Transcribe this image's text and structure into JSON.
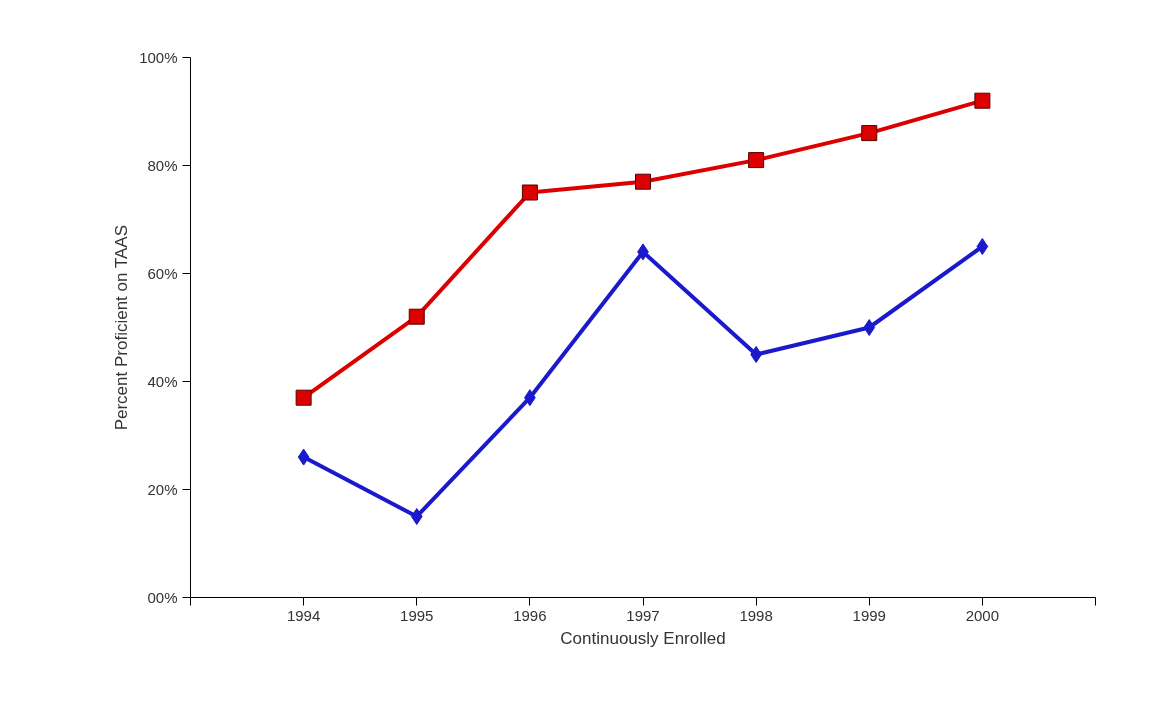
{
  "chart_data": {
    "type": "line",
    "xlabel": "Continuously Enrolled",
    "ylabel": "Percent Proficient on TAAS",
    "x": [
      1994,
      1995,
      1996,
      1997,
      1998,
      1999,
      2000
    ],
    "series": [
      {
        "color": "#dd0000",
        "marker": "square",
        "values": [
          37,
          52,
          75,
          77,
          81,
          86,
          92
        ]
      },
      {
        "color": "#1a1acc",
        "marker": "diamond",
        "values": [
          26,
          15,
          37,
          64,
          45,
          50,
          65
        ]
      }
    ],
    "xlim": [
      1993,
      2001
    ],
    "xticks": [
      {
        "value": 1993,
        "label": null
      },
      1994,
      1995,
      1996,
      1997,
      1998,
      1999,
      2000,
      {
        "value": 2001,
        "label": null
      }
    ],
    "ylim": [
      0,
      100
    ],
    "yticks": [
      {
        "value": 0,
        "label": "00%"
      },
      {
        "value": 20,
        "label": "20%"
      },
      {
        "value": 40,
        "label": "40%"
      },
      {
        "value": 60,
        "label": "60%"
      },
      {
        "value": 80,
        "label": "80%"
      },
      {
        "value": 100,
        "label": "100%"
      }
    ],
    "grid": false,
    "line_style": "solid"
  }
}
